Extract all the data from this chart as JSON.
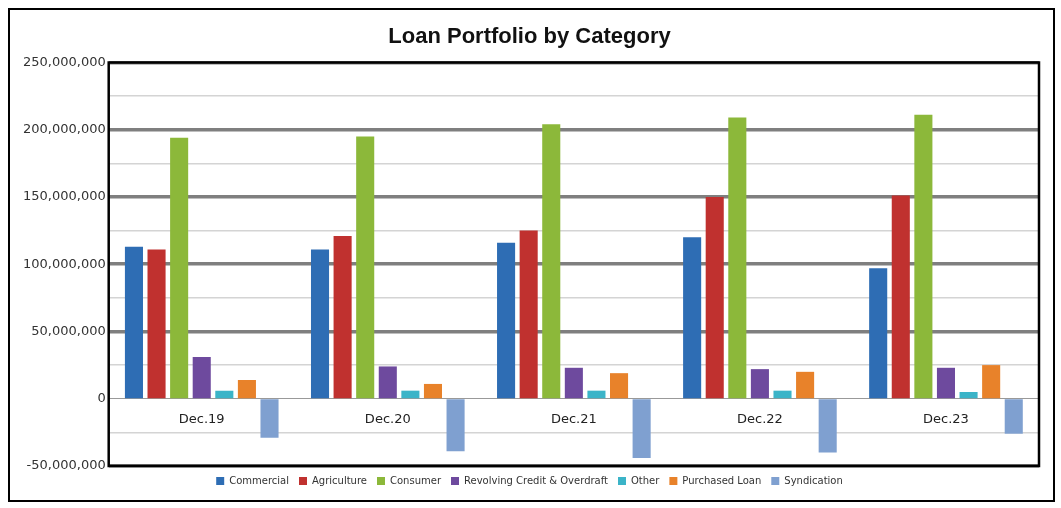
{
  "chart_data": {
    "type": "bar",
    "title": "Loan Portfolio by Category",
    "categories": [
      "Dec.19",
      "Dec.20",
      "Dec.21",
      "Dec.22",
      "Dec.23"
    ],
    "series": [
      {
        "name": "Commercial",
        "color": "#2e6db4",
        "values": [
          113000000,
          111000000,
          116000000,
          120000000,
          97000000
        ]
      },
      {
        "name": "Agriculture",
        "color": "#c0312f",
        "values": [
          111000000,
          121000000,
          125000000,
          150000000,
          151000000
        ]
      },
      {
        "name": "Consumer",
        "color": "#8cb83a",
        "values": [
          194000000,
          195000000,
          204000000,
          209000000,
          211000000
        ]
      },
      {
        "name": "Revolving Credit & Overdraft",
        "color": "#6e4a9e",
        "values": [
          31000000,
          24000000,
          23000000,
          22000000,
          23000000
        ]
      },
      {
        "name": "Other",
        "color": "#3bb4c8",
        "values": [
          6000000,
          6000000,
          6000000,
          6000000,
          5000000
        ]
      },
      {
        "name": "Purchased Loan",
        "color": "#e8822a",
        "values": [
          14000000,
          11000000,
          19000000,
          20000000,
          25000000
        ]
      },
      {
        "name": "Syndication",
        "color": "#7fa0d0",
        "values": [
          -29000000,
          -39000000,
          -44000000,
          -40000000,
          -26000000
        ]
      }
    ],
    "ylim": [
      -50000000,
      250000000
    ],
    "yticks": [
      {
        "value": -50000000,
        "label": "-50,000,000"
      },
      {
        "value": -25000000,
        "label": null
      },
      0,
      {
        "value": 25000000,
        "label": null
      },
      {
        "value": 50000000,
        "label": "50,000,000"
      },
      {
        "value": 75000000,
        "label": null
      },
      {
        "value": 100000000,
        "label": "100,000,000"
      },
      {
        "value": 125000000,
        "label": null
      },
      {
        "value": 150000000,
        "label": "150,000,000"
      },
      {
        "value": 175000000,
        "label": null
      },
      {
        "value": 200000000,
        "label": "200,000,000"
      },
      {
        "value": 225000000,
        "label": null
      },
      {
        "value": 250000000,
        "label": "250,000,000"
      }
    ],
    "grid": "y",
    "legend": "bottom"
  }
}
